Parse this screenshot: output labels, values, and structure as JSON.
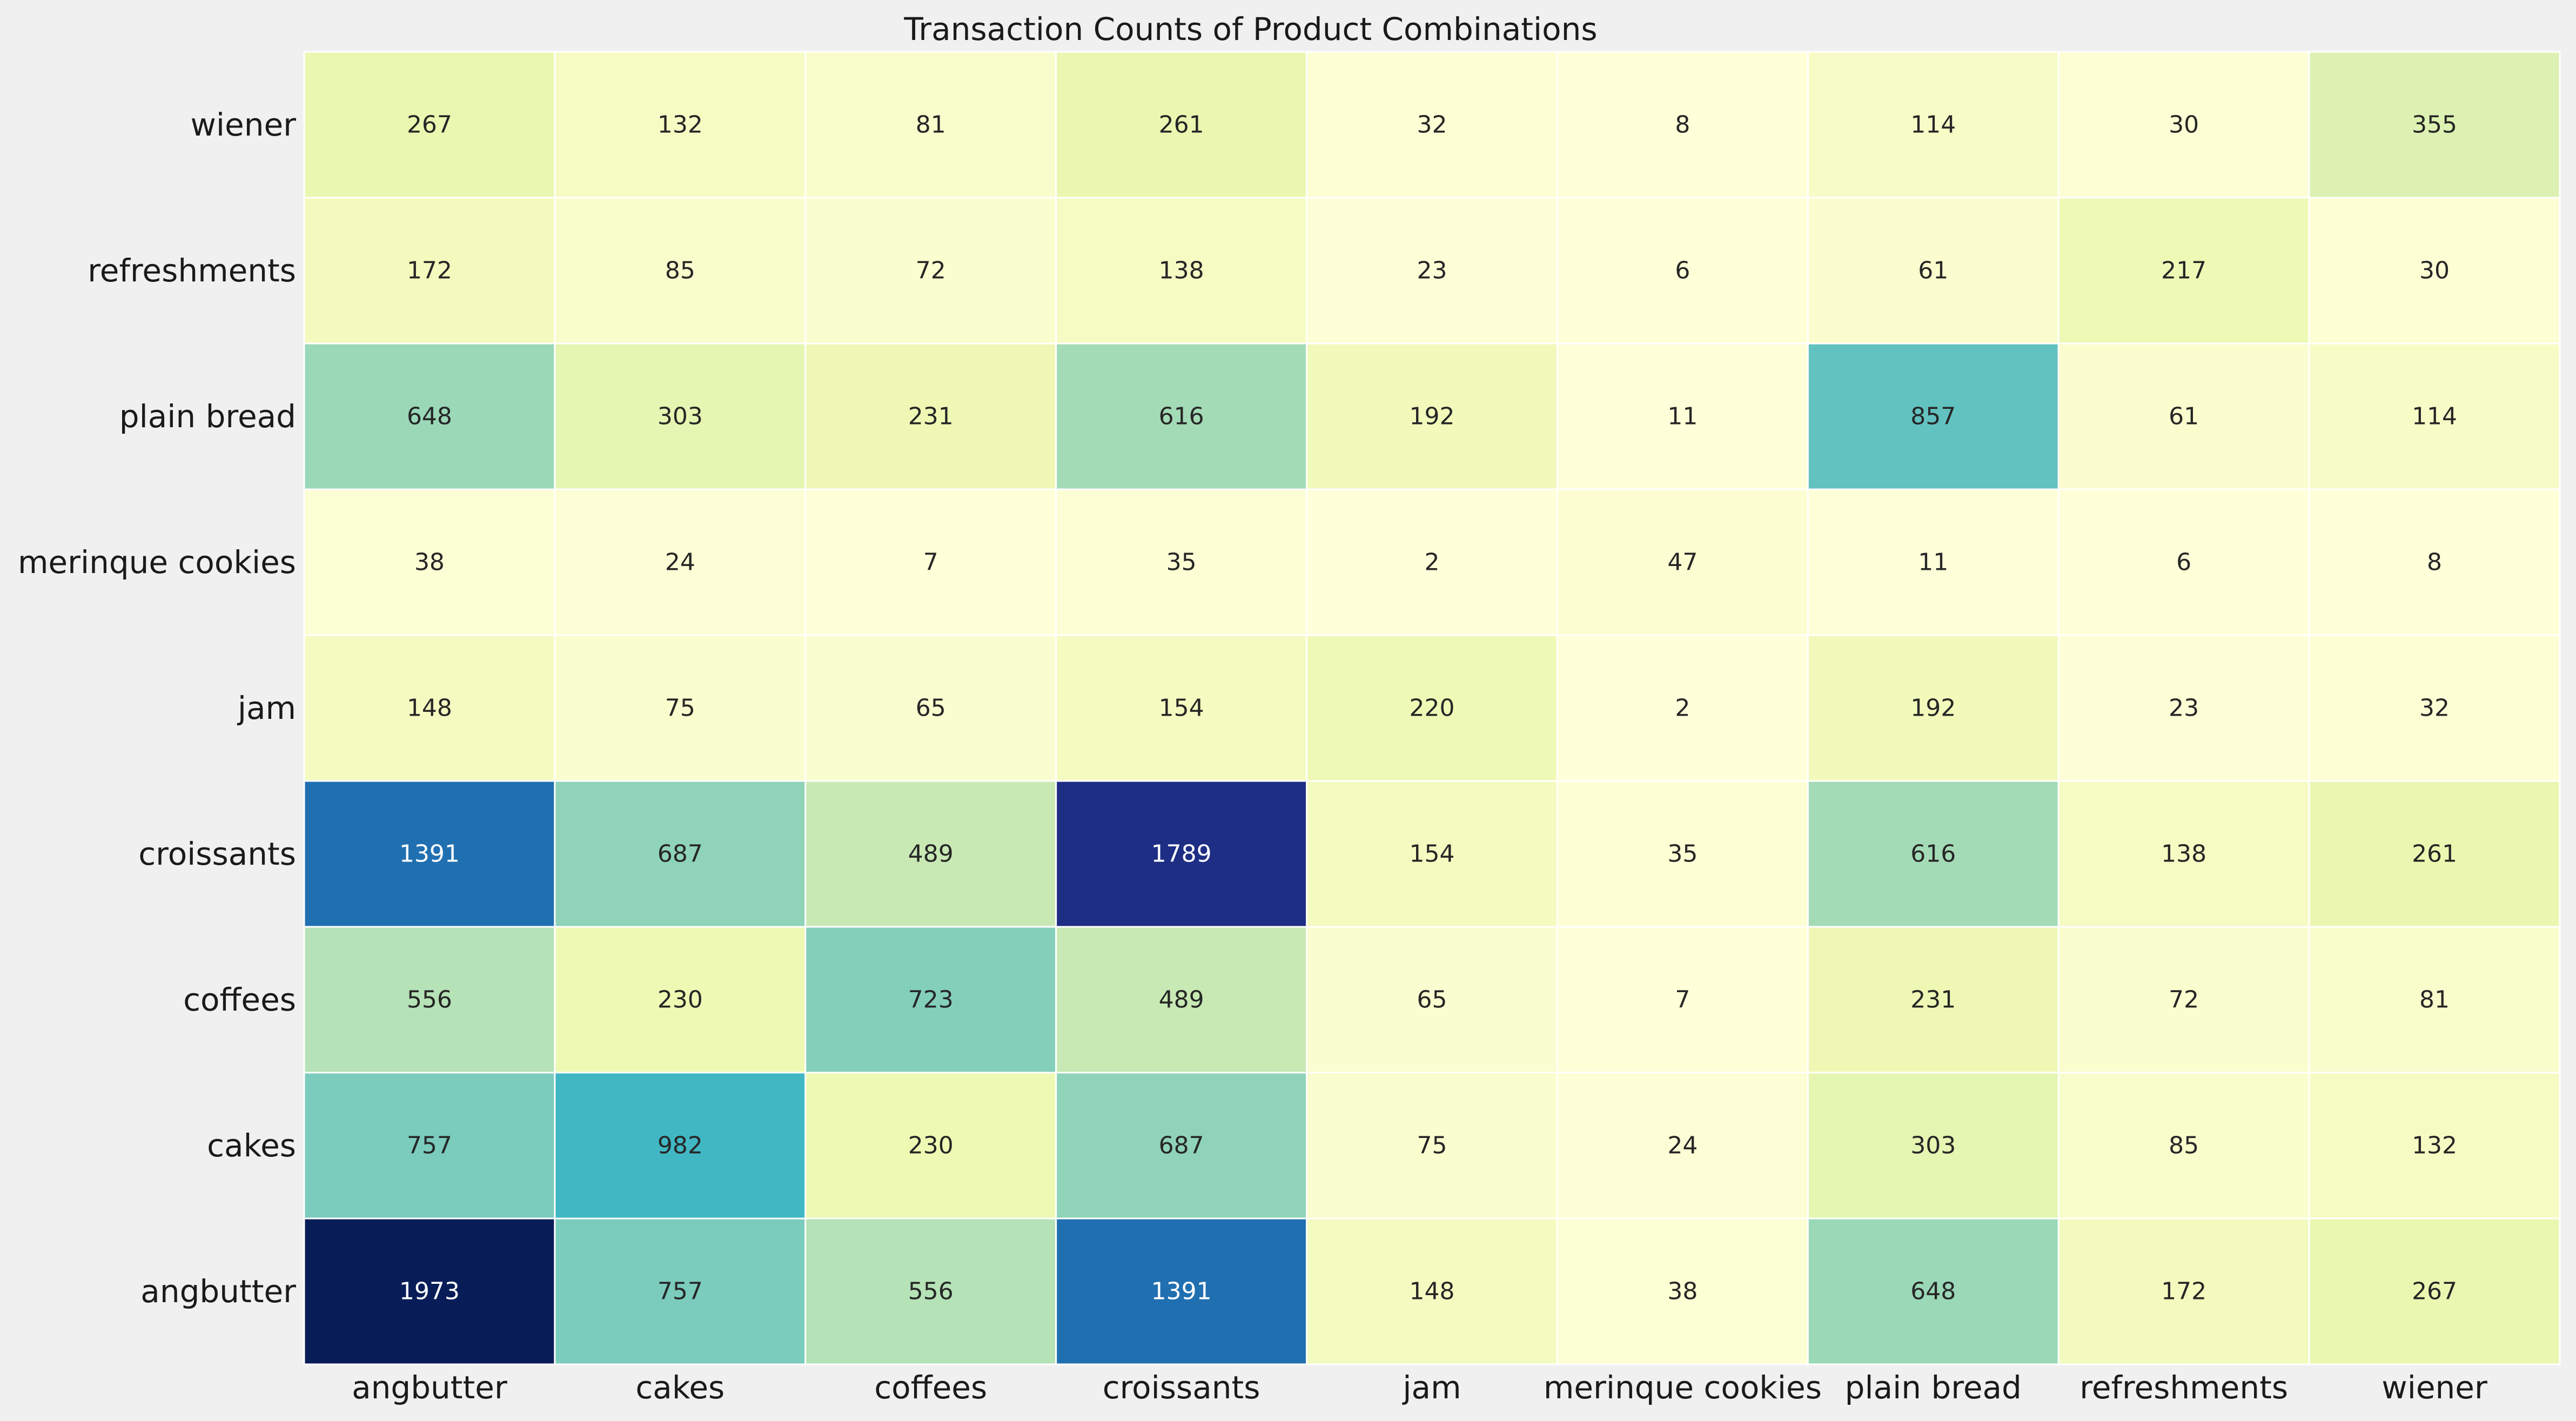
{
  "chart_data": {
    "type": "heatmap",
    "title": "Transaction Counts of Product Combinations",
    "xlabel": "",
    "ylabel": "",
    "x_categories": [
      "angbutter",
      "cakes",
      "coffees",
      "croissants",
      "jam",
      "merinque cookies",
      "plain bread",
      "refreshments",
      "wiener"
    ],
    "y_categories": [
      "wiener",
      "refreshments",
      "plain bread",
      "merinque cookies",
      "jam",
      "croissants",
      "coffees",
      "cakes",
      "angbutter"
    ],
    "values": [
      [
        267,
        132,
        81,
        261,
        32,
        8,
        114,
        30,
        355
      ],
      [
        172,
        85,
        72,
        138,
        23,
        6,
        61,
        217,
        30
      ],
      [
        648,
        303,
        231,
        616,
        192,
        11,
        857,
        61,
        114
      ],
      [
        38,
        24,
        7,
        35,
        2,
        47,
        11,
        6,
        8
      ],
      [
        148,
        75,
        65,
        154,
        220,
        2,
        192,
        23,
        32
      ],
      [
        1391,
        687,
        489,
        1789,
        154,
        35,
        616,
        138,
        261
      ],
      [
        556,
        230,
        723,
        489,
        65,
        7,
        231,
        72,
        81
      ],
      [
        757,
        982,
        230,
        687,
        75,
        24,
        303,
        85,
        132
      ],
      [
        1973,
        757,
        556,
        1391,
        148,
        38,
        648,
        172,
        267
      ]
    ],
    "colormap": "YlGnBu",
    "value_range": [
      2,
      1973
    ],
    "annotations": true,
    "colorbar": false,
    "grid": false
  },
  "colors": {
    "background": "#f0f0f0",
    "cell_border": "#ffffff",
    "text_dark": "#262626",
    "text_light": "#ffffff"
  }
}
